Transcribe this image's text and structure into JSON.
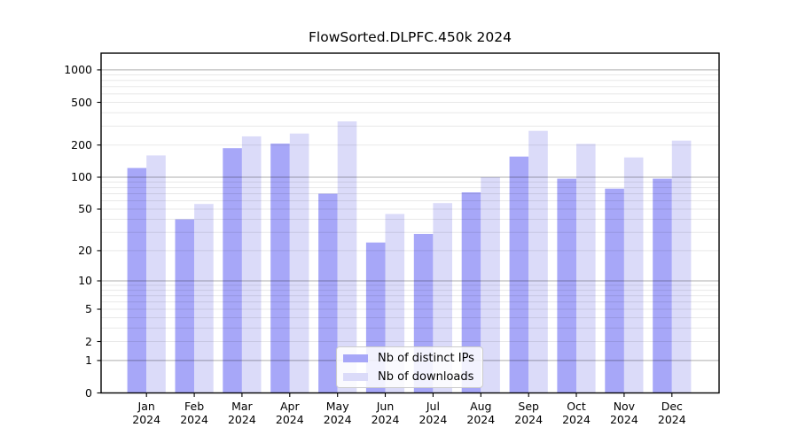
{
  "title": "FlowSorted.DLPFC.450k 2024",
  "legend": {
    "items": [
      {
        "label": "Nb of distinct IPs",
        "color": "#a7a7f8"
      },
      {
        "label": "Nb of downloads",
        "color": "#dbdbf9"
      }
    ]
  },
  "colors": {
    "ips_bar": "#a7a7f8",
    "downloads_bar": "#dbdbf9",
    "major_grid": "rgba(0,0,0,0.32)",
    "minor_grid": "rgba(0,0,0,0.09)",
    "spine": "#000000"
  },
  "chart_data": {
    "type": "bar",
    "title": "FlowSorted.DLPFC.450k 2024",
    "categories": [
      "Jan 2024",
      "Feb 2024",
      "Mar 2024",
      "Apr 2024",
      "May 2024",
      "Jun 2024",
      "Jul 2024",
      "Aug 2024",
      "Sep 2024",
      "Oct 2024",
      "Nov 2024",
      "Dec 2024"
    ],
    "series": [
      {
        "name": "Nb of distinct IPs",
        "color": "#a7a7f8",
        "values": [
          122,
          40,
          187,
          206,
          70,
          24,
          29,
          72,
          156,
          97,
          78,
          97
        ]
      },
      {
        "name": "Nb of downloads",
        "color": "#dbdbf9",
        "values": [
          160,
          56,
          241,
          256,
          332,
          45,
          57,
          100,
          271,
          205,
          153,
          220
        ]
      }
    ],
    "xlabel": "",
    "ylabel": "",
    "yscale": "log1p",
    "yticks": [
      0,
      1,
      2,
      5,
      10,
      20,
      50,
      100,
      200,
      500,
      1000
    ],
    "minor_gridlines": [
      2,
      3,
      4,
      5,
      6,
      7,
      8,
      9,
      20,
      30,
      40,
      50,
      60,
      70,
      80,
      90,
      200,
      300,
      400,
      500,
      600,
      700,
      800,
      900
    ],
    "major_gridlines": [
      1,
      10,
      100,
      1000
    ],
    "ylim": [
      0,
      1430
    ],
    "grid": true,
    "legend_position": "lower center"
  }
}
